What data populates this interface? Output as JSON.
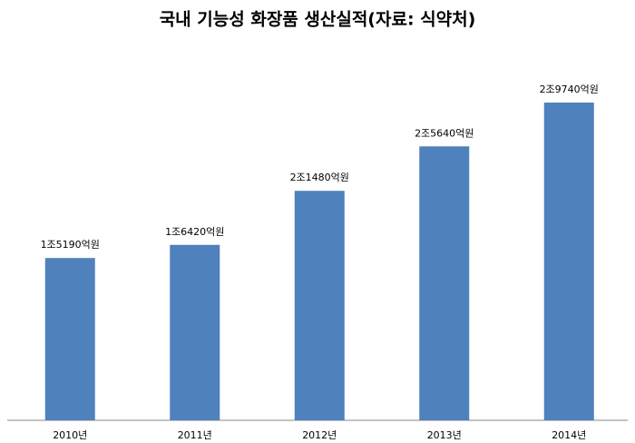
{
  "chart_data": {
    "type": "bar",
    "title": "국내 기능성 화장품 생산실적(자료: 식약처)",
    "categories": [
      "2010년",
      "2011년",
      "2012년",
      "2013년",
      "2014년"
    ],
    "values": [
      15190,
      16420,
      21480,
      25640,
      29740
    ],
    "value_labels": [
      "1조5190억원",
      "1조6420억원",
      "2조1480억원",
      "2조5640억원",
      "2조9740억원"
    ],
    "color": "#4f81bd"
  }
}
